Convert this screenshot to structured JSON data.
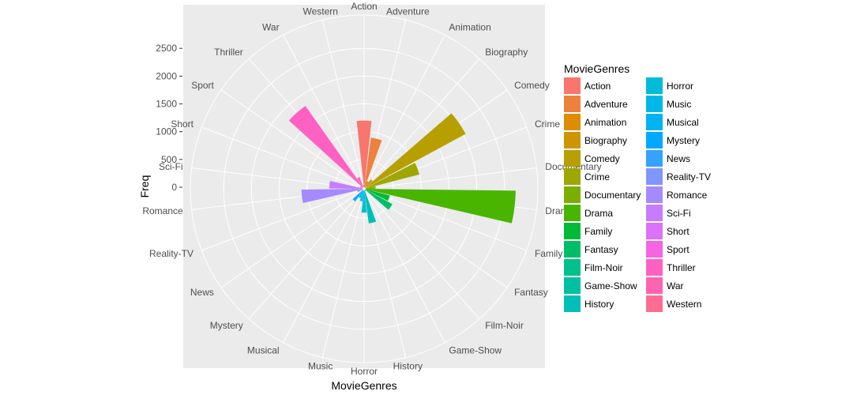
{
  "chart_data": {
    "type": "bar",
    "coord": "polar",
    "title": "",
    "xlabel": "MovieGenres",
    "ylabel": "Freq",
    "ylim": [
      0,
      3100
    ],
    "yticks": [
      0,
      500,
      1000,
      1500,
      2000,
      2500
    ],
    "legend_title": "MovieGenres",
    "legend_position": "right",
    "grid": true,
    "categories": [
      "Action",
      "Adventure",
      "Animation",
      "Biography",
      "Comedy",
      "Crime",
      "Documentary",
      "Drama",
      "Family",
      "Fantasy",
      "Film-Noir",
      "Game-Show",
      "History",
      "Horror",
      "Music",
      "Musical",
      "Mystery",
      "News",
      "Reality-TV",
      "Romance",
      "Sci-Fi",
      "Short",
      "Sport",
      "Thriller",
      "War",
      "Western"
    ],
    "values": [
      1200,
      900,
      120,
      180,
      2050,
      1000,
      180,
      2700,
      450,
      550,
      20,
      20,
      600,
      400,
      200,
      150,
      250,
      20,
      100,
      1100,
      600,
      50,
      50,
      1800,
      200,
      40
    ],
    "colors": [
      "#F8766D",
      "#ED813E",
      "#DE8C00",
      "#CD9600",
      "#B79F00",
      "#9DA700",
      "#7CAE00",
      "#49B500",
      "#00BA38",
      "#00BE67",
      "#00C08B",
      "#00C0A3",
      "#00BFB8",
      "#00BCD8",
      "#00B8E5",
      "#00B4F0",
      "#00A9FF",
      "#35A2FF",
      "#7F96FF",
      "#A58AFF",
      "#C77CFF",
      "#DC71FA",
      "#F564E3",
      "#FF61C3",
      "#FF64B0",
      "#FF6C91"
    ]
  }
}
